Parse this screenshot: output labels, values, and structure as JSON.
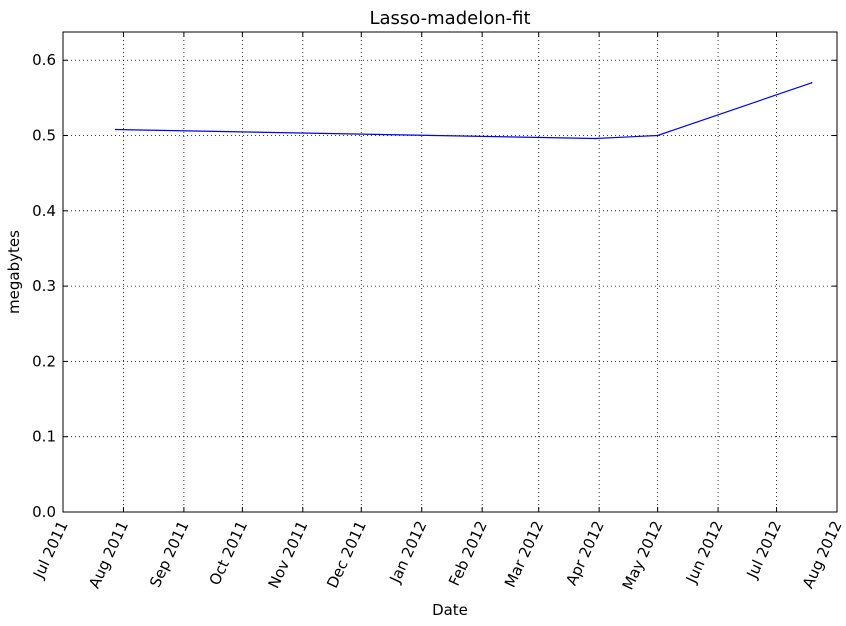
{
  "chart_data": {
    "type": "line",
    "title": "Lasso-madelon-fit",
    "xlabel": "Date",
    "ylabel": "megabytes",
    "grid": true,
    "xlim": [
      "2011-07-01",
      "2012-08-01"
    ],
    "ylim": [
      0,
      0.6375
    ],
    "x_ticks": [
      "2011-07-01",
      "2011-08-01",
      "2011-09-01",
      "2011-10-01",
      "2011-11-01",
      "2011-12-01",
      "2012-01-01",
      "2012-02-01",
      "2012-03-01",
      "2012-04-01",
      "2012-05-01",
      "2012-06-01",
      "2012-07-01",
      "2012-08-01"
    ],
    "x_tick_labels": [
      "Jul 2011",
      "Aug 2011",
      "Sep 2011",
      "Oct 2011",
      "Nov 2011",
      "Dec 2011",
      "Jan 2012",
      "Feb 2012",
      "Mar 2012",
      "Apr 2012",
      "May 2012",
      "Jun 2012",
      "Jul 2012",
      "Aug 2012"
    ],
    "y_ticks": [
      0.0,
      0.1,
      0.2,
      0.3,
      0.4,
      0.5,
      0.6
    ],
    "y_tick_labels": [
      "0.0",
      "0.1",
      "0.2",
      "0.3",
      "0.4",
      "0.5",
      "0.6"
    ],
    "series": [
      {
        "name": "Lasso-madelon-fit",
        "color": "#0000ff",
        "x": [
          "2011-07-28",
          "2012-03-30",
          "2012-05-01",
          "2012-07-19"
        ],
        "values": [
          0.508,
          0.496,
          0.5,
          0.57
        ]
      }
    ]
  }
}
